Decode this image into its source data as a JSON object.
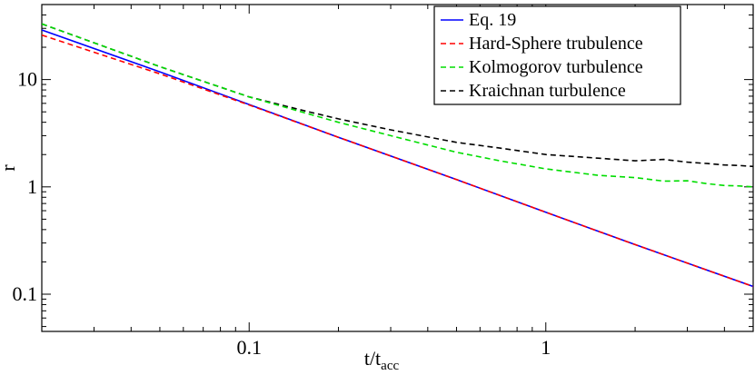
{
  "chart_data": {
    "type": "line",
    "x_scale": "log",
    "y_scale": "log",
    "xlabel": "t/t",
    "xlabel_sub": "acc",
    "ylabel": "r",
    "xlim": [
      0.02,
      5.0
    ],
    "ylim": [
      0.045,
      50
    ],
    "x_ticks": [
      {
        "value": 0.1,
        "label": "0.1"
      },
      {
        "value": 1,
        "label": "1"
      }
    ],
    "y_ticks": [
      {
        "value": 0.1,
        "label": "0.1"
      },
      {
        "value": 1,
        "label": "1"
      },
      {
        "value": 10,
        "label": "10"
      }
    ],
    "grid": false,
    "legend_position": "top-right",
    "series": [
      {
        "name": "Eq. 19",
        "color": "#0000ff",
        "dash": "solid",
        "x": [
          0.02,
          0.05,
          0.1,
          0.2,
          0.5,
          1.0,
          2.0,
          5.0
        ],
        "y": [
          29.0,
          11.8,
          5.85,
          2.9,
          1.17,
          0.58,
          0.29,
          0.118
        ]
      },
      {
        "name": "Hard-Sphere trubulence",
        "color": "#ff0000",
        "dash": "dashed",
        "x": [
          0.02,
          0.05,
          0.1,
          0.2,
          0.5,
          1.0,
          2.0,
          5.0
        ],
        "y": [
          26.0,
          11.3,
          5.8,
          2.9,
          1.17,
          0.58,
          0.29,
          0.118
        ]
      },
      {
        "name": "Kolmogorov turbulence",
        "color": "#00dd00",
        "dash": "dashed",
        "x": [
          0.02,
          0.05,
          0.1,
          0.15,
          0.2,
          0.3,
          0.5,
          0.7,
          1.0,
          1.5,
          2.0,
          2.5,
          3.0,
          3.5,
          4.0,
          4.5,
          5.0
        ],
        "y": [
          33.0,
          13.2,
          6.9,
          5.0,
          4.0,
          3.0,
          2.1,
          1.75,
          1.47,
          1.28,
          1.22,
          1.13,
          1.14,
          1.07,
          1.03,
          1.02,
          1.0
        ]
      },
      {
        "name": "Kraichnan turbulence",
        "color": "#000000",
        "dash": "dashed",
        "x": [
          0.02,
          0.05,
          0.1,
          0.15,
          0.2,
          0.3,
          0.5,
          0.7,
          1.0,
          1.5,
          2.0,
          2.5,
          3.0,
          3.5,
          4.0,
          4.5,
          5.0
        ],
        "y": [
          33.0,
          13.2,
          6.9,
          5.2,
          4.3,
          3.4,
          2.6,
          2.3,
          2.0,
          1.85,
          1.75,
          1.8,
          1.7,
          1.65,
          1.6,
          1.58,
          1.55
        ]
      }
    ]
  }
}
